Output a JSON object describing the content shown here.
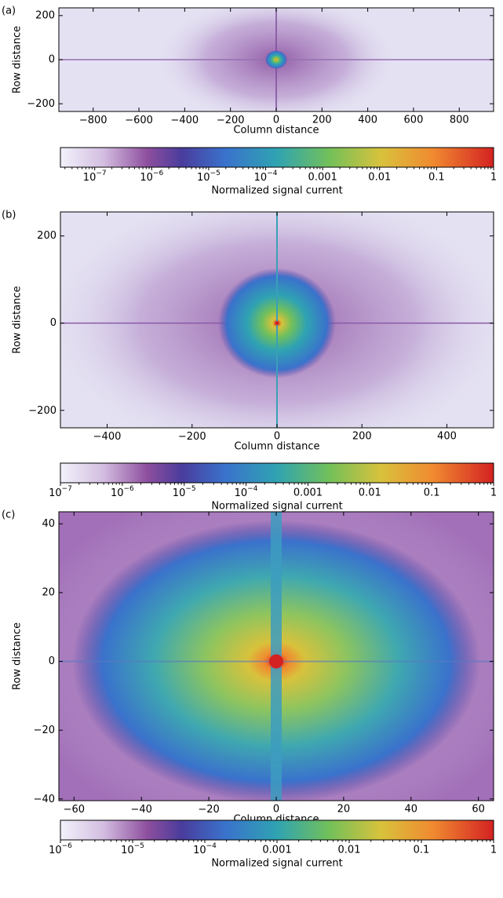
{
  "chart_data": [
    {
      "type": "heatmap",
      "panel_label": "(a)",
      "xlabel": "Column distance",
      "ylabel": "Row distance",
      "xlim": [
        -950,
        950
      ],
      "ylim": [
        -235,
        235
      ],
      "xticks": [
        {
          "value": -800,
          "label": "−800"
        },
        {
          "value": -600,
          "label": "−600"
        },
        {
          "value": -400,
          "label": "−400"
        },
        {
          "value": -200,
          "label": "−200"
        },
        0,
        200,
        400,
        600,
        800
      ],
      "yticks": [
        {
          "value": -200,
          "label": "−200"
        },
        0,
        200
      ],
      "colorbar": {
        "label": "Normalized signal current",
        "scale": "log",
        "lim": [
          2.5e-08,
          1
        ],
        "ticks": [
          {
            "value": 1e-07,
            "label": "10",
            "exponent": "−7"
          },
          {
            "value": 1e-06,
            "label": "10",
            "exponent": "−6"
          },
          {
            "value": 1e-05,
            "label": "10",
            "exponent": "−5"
          },
          {
            "value": 0.0001,
            "label": "10",
            "exponent": "−4"
          },
          0.001,
          0.01,
          0.1,
          1
        ]
      }
    },
    {
      "type": "heatmap",
      "panel_label": "(b)",
      "xlabel": "Column distance",
      "ylabel": "Row distance",
      "xlim": [
        -510,
        510
      ],
      "ylim": [
        -240,
        255
      ],
      "xticks": [
        {
          "value": -400,
          "label": "−400"
        },
        {
          "value": -200,
          "label": "−200"
        },
        0,
        200,
        400
      ],
      "yticks": [
        {
          "value": -200,
          "label": "−200"
        },
        0,
        200
      ],
      "colorbar": {
        "label": "Normalized signal current",
        "scale": "log",
        "lim": [
          1e-07,
          1
        ],
        "ticks": [
          {
            "value": 1e-07,
            "label": "10",
            "exponent": "−7"
          },
          {
            "value": 1e-06,
            "label": "10",
            "exponent": "−6"
          },
          {
            "value": 1e-05,
            "label": "10",
            "exponent": "−5"
          },
          {
            "value": 0.0001,
            "label": "10",
            "exponent": "−4"
          },
          0.001,
          0.01,
          0.1,
          1
        ]
      }
    },
    {
      "type": "heatmap",
      "panel_label": "(c)",
      "xlabel": "Column distance",
      "ylabel": "Row distance",
      "xlim": [
        -64.5,
        64.5
      ],
      "ylim": [
        -40.5,
        43.5
      ],
      "xticks": [
        {
          "value": -60,
          "label": "−60"
        },
        {
          "value": -40,
          "label": "−40"
        },
        {
          "value": -20,
          "label": "−20"
        },
        0,
        20,
        40,
        60
      ],
      "yticks": [
        {
          "value": -40,
          "label": "−40"
        },
        {
          "value": -20,
          "label": "−20"
        },
        0,
        20,
        40
      ],
      "colorbar": {
        "label": "Normalized signal current",
        "scale": "log",
        "lim": [
          1e-06,
          1
        ],
        "ticks": [
          {
            "value": 1e-06,
            "label": "10",
            "exponent": "−6"
          },
          {
            "value": 1e-05,
            "label": "10",
            "exponent": "−5"
          },
          {
            "value": 0.0001,
            "label": "10",
            "exponent": "−4"
          },
          0.001,
          0.01,
          0.1,
          1
        ]
      }
    }
  ]
}
